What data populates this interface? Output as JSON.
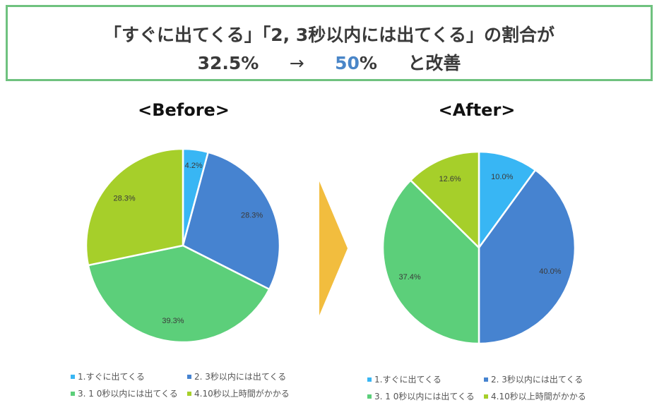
{
  "headline": {
    "line1": "「すぐに出てくる」「2, 3秒以内には出てくる」の割合が",
    "before_value": "32.5%",
    "arrow": "→",
    "after_value_number": "50",
    "after_value_unit": "%",
    "suffix": "と改善"
  },
  "colors": {
    "border": "#6fc27f",
    "highlight": "#4a86c8",
    "arrow": "#f2bd3e",
    "series": [
      "#38b6f4",
      "#4683d0",
      "#5ccf7a",
      "#a6cf2a"
    ]
  },
  "chart_data": [
    {
      "type": "pie",
      "title": "<Before>",
      "categories": [
        "1.すぐに出てくる",
        "2. 3秒以内には出てくる",
        "3. 1 0秒以内には出てくる",
        "4.10秒以上時間がかかる"
      ],
      "values": [
        4.2,
        28.3,
        39.3,
        28.3
      ],
      "labels": [
        "4.2%",
        "28.3%",
        "39.3%",
        "28.3%"
      ],
      "start_angle": "12 o'clock, clockwise",
      "legend_position": "bottom"
    },
    {
      "type": "pie",
      "title": "<After>",
      "categories": [
        "1.すぐに出てくる",
        "2. 3秒以内には出てくる",
        "3. 1 0秒以内には出てくる",
        "4.10秒以上時間がかかる"
      ],
      "values": [
        10.0,
        40.0,
        37.4,
        12.6
      ],
      "labels": [
        "10.0%",
        "40.0%",
        "37.4%",
        "12.6%"
      ],
      "start_angle": "12 o'clock, clockwise",
      "legend_position": "bottom"
    }
  ],
  "legend": {
    "items": [
      "1.すぐに出てくる",
      "2. 3秒以内には出てくる",
      "3. 1 0秒以内には出てくる",
      "4.10秒以上時間がかかる"
    ]
  }
}
